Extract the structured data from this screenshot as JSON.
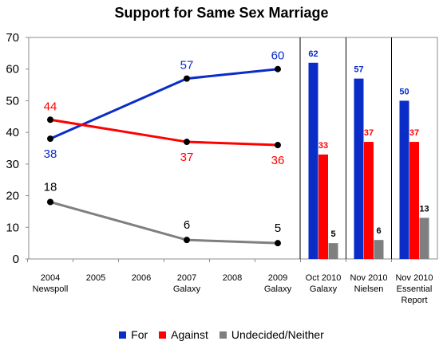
{
  "chart_data": {
    "type": "line+bar",
    "title": "Support for Same Sex Marriage",
    "ylim": [
      0,
      70
    ],
    "yticks": [
      0,
      10,
      20,
      30,
      40,
      50,
      60,
      70
    ],
    "categories": [
      [
        "2004",
        "Newspoll"
      ],
      [
        "2005"
      ],
      [
        "2006"
      ],
      [
        "2007",
        "Galaxy"
      ],
      [
        "2008"
      ],
      [
        "2009",
        "Galaxy"
      ],
      [
        "Oct 2010",
        "Galaxy"
      ],
      [
        "Nov 2010",
        "Nielsen"
      ],
      [
        "Nov 2010",
        "Essential",
        "Report"
      ]
    ],
    "series": [
      {
        "name": "For",
        "color": "#0A2DC8",
        "line_points": [
          {
            "category": 0,
            "value": 38
          },
          {
            "category": 3,
            "value": 57
          },
          {
            "category": 5,
            "value": 60
          }
        ],
        "bar_values": [
          62,
          57,
          50
        ]
      },
      {
        "name": "Against",
        "color": "#FF0000",
        "line_points": [
          {
            "category": 0,
            "value": 44
          },
          {
            "category": 3,
            "value": 37
          },
          {
            "category": 5,
            "value": 36
          }
        ],
        "bar_values": [
          33,
          37,
          37
        ]
      },
      {
        "name": "Undecided/Neither",
        "color": "#7F7F7F",
        "line_points": [
          {
            "category": 0,
            "value": 18
          },
          {
            "category": 3,
            "value": 6
          },
          {
            "category": 5,
            "value": 5
          }
        ],
        "bar_values": [
          5,
          6,
          13
        ]
      }
    ],
    "line_label_colors": [
      "#0A2DC8",
      "#FF0000",
      "#000000"
    ],
    "bar_label_colors": [
      "#0A2DC8",
      "#FF0000",
      "#000000"
    ],
    "bar_categories": [
      6,
      7,
      8
    ],
    "legend_position": "bottom",
    "grid": false
  }
}
